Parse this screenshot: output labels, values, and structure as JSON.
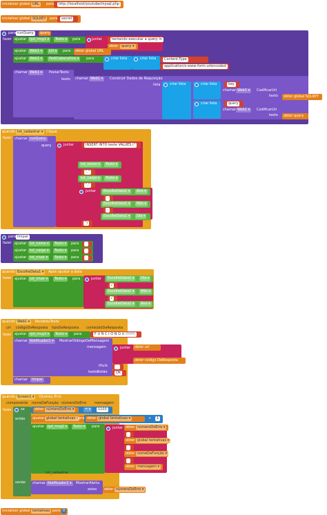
{
  "globals": {
    "url": {
      "prefix": "inicializar global",
      "name": "URL",
      "para": "para",
      "value": "http://localhost/youtube/mysql.php"
    },
    "sqlkey": {
      "prefix": "inicializar global",
      "name": "SQLKEY",
      "para": "para",
      "value": "secret"
    }
  },
  "runquery": {
    "para": "para",
    "name": "runQuery",
    "param": "query",
    "fazer": "fazer",
    "set1": {
      "ajustar": "ajustar",
      "comp": "lgd_msg1",
      "prop": "Texto",
      "para": "para",
      "juntar": "juntar",
      "t1": "tentando executar a query in",
      "obter": "obter",
      "q": "query"
    },
    "set2": {
      "ajustar": "ajustar",
      "comp": "Web1",
      "prop": "Url",
      "para": "para",
      "obter": "obter global URL"
    },
    "set3": {
      "ajustar": "ajustar",
      "comp": "Web1",
      "prop": "PediCabecalhos",
      "para": "para",
      "cl1": "criar lista",
      "cl2": "criar lista",
      "ct": "Content-Type",
      "app": "application/x-www-form-urlencoded"
    },
    "call": {
      "chamar": "chamar",
      "comp": "Web1",
      "method": "PostarTexto",
      "texto": "texto",
      "chamar2": "chamar",
      "comp2": "Web1",
      "method2": "Construir Dados de Requisição",
      "lista": "lista",
      "cl": "criar lista",
      "cl2": "criar lista",
      "cl3": "criar lista",
      "key": "key",
      "chamar3": "chamar",
      "comp3": "Web1",
      "cod": "CodificarUri",
      "texto3": "texto",
      "obter3": "obter global SQLKEY",
      "query": "query",
      "chamar4": "chamar",
      "comp4": "Web1",
      "cod4": "CodificarUri",
      "texto4": "texto",
      "obter4": "obter query"
    }
  },
  "cadastrar": {
    "quando": "quando",
    "comp": "txt_cadastrar",
    "event": "Clique",
    "fazer": "fazer",
    "chamar": "chamar",
    "proc": "runQuery",
    "query": "query",
    "juntar": "juntar",
    "s1": "INSERT INTO teste VALUES (\"",
    "n1": "txt_nome",
    "p1": "Texto",
    "s2": "\",\"",
    "n2": "txt_cargo",
    "p2": "Texto",
    "s3": "\",\"",
    "juntar2": "juntar",
    "d1": "EscolheData1",
    "dp1": "Ano",
    "s4": "-",
    "d2": "EscolheData1",
    "dp2": "Mês",
    "s5": "-",
    "d3": "EscolheData1",
    "dp3": "Dia",
    "s6": "\")"
  },
  "limpar": {
    "para": "para",
    "name": "limpar",
    "fazer": "fazer",
    "rows": [
      {
        "ajustar": "ajustar",
        "comp": "txt_nome",
        "prop": "Texto",
        "para": "para"
      },
      {
        "ajustar": "ajustar",
        "comp": "txt_cargo",
        "prop": "Texto",
        "para": "para"
      },
      {
        "ajustar": "ajustar",
        "comp": "txt_niver",
        "prop": "Texto",
        "para": "para"
      }
    ]
  },
  "escolhe": {
    "quando": "quando",
    "comp": "EscolheData1",
    "event": "Após ajustar a data",
    "fazer": "fazer",
    "ajustar": "ajustar",
    "t": "txt_niver",
    "prop": "Texto",
    "para": "para",
    "juntar": "juntar",
    "d1": "EscolheData1",
    "p1": "Dia",
    "s1": "/",
    "d2": "EscolheData1",
    "p2": "Mês",
    "s2": "/",
    "d3": "EscolheData1",
    "p3": "Ano"
  },
  "recebido": {
    "quando": "quando",
    "comp": "Web1",
    "event": "RecebeuTexto",
    "params": [
      "url",
      "códigoDeResposta",
      "tipoDaResposta",
      "conteúdoDaResposta"
    ],
    "fazer": "fazer",
    "ajustar": "ajustar",
    "l": "lgd_msg3",
    "prop": "Texto",
    "para": "para",
    "val": "F U N C I O N O U !!!!!!!",
    "chamar": "chamar",
    "n": "Notificador1",
    "method": "MostrarDiálogoDeMensagem",
    "mensagem": "mensagem",
    "juntar": "juntar",
    "obter1": "obter url",
    "obter2": "obter código DeResposta",
    "titulo": "título",
    "tval": "",
    "botao": "textoBotão",
    "bval": "OK",
    "chamar2": "chamar",
    "limpar": "limpar"
  },
  "screen": {
    "quando": "quando",
    "comp": "Screen1",
    "event": "Ocorreu Erro",
    "params": [
      "componente",
      "nomeDaFunção",
      "númeroDoErro",
      "mensagem"
    ],
    "fazer": "fazer",
    "se": "se",
    "obter": "obter",
    "num": "númeroDoErro",
    "eq": "=",
    "v": "1103",
    "entao": "então",
    "ajustar": "ajustar",
    "g": "global tentativas",
    "para": "para",
    "obter2": "obter",
    "g2": "global tentativas",
    "plus": "+",
    "one": "1",
    "ajustar2": "ajustar",
    "l": "lgd_msg2",
    "prop": "Texto",
    "para2": "para",
    "juntar": "juntar",
    "o1": "obter",
    "v1": "númeroDoErro",
    "o2": "obter",
    "v2": "global tentativas",
    "o3": "obter",
    "v3": "nomeDaFunção",
    "o4": "obter",
    "v4": "mensagem",
    "txtcad": "txt_cadastrar",
    "senao": "senão",
    "chamar": "chamar",
    "n": "Notificador1",
    "method": "MostrarAlerta",
    "aviso": "aviso",
    "o5": "obter",
    "v5": "númeroDoErro"
  },
  "tentativas": {
    "prefix": "inicializar global",
    "name": "tentativas",
    "para": "para",
    "value": "0"
  }
}
